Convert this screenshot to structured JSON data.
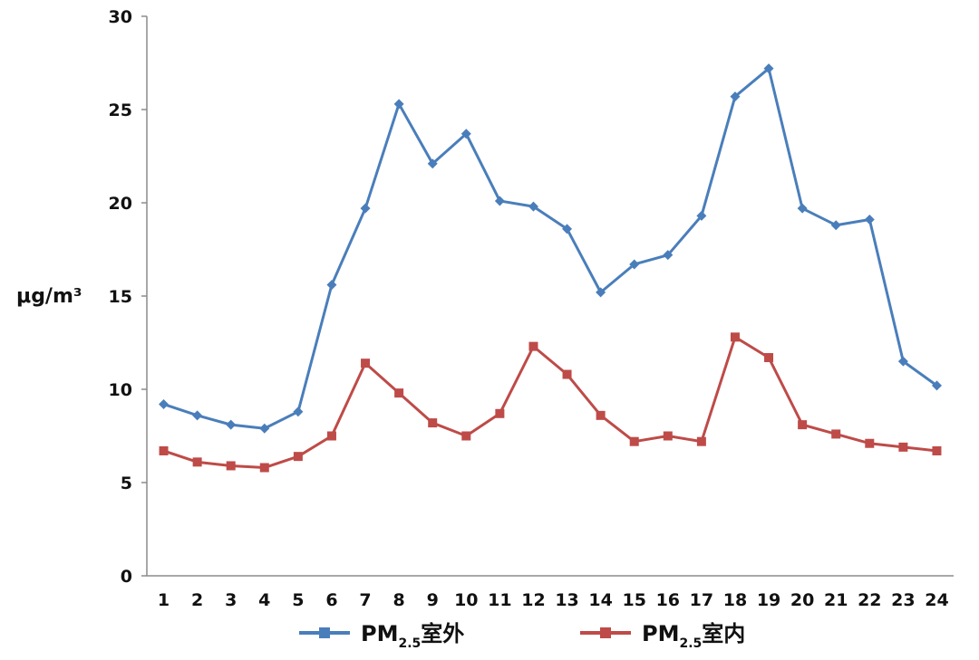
{
  "chart_data": {
    "type": "line",
    "title": "",
    "xlabel": "",
    "ylabel": "μg/m³",
    "ylim": [
      0,
      30
    ],
    "yticks": [
      0,
      5,
      10,
      15,
      20,
      25,
      30
    ],
    "grid": false,
    "legend_position": "bottom",
    "categories": [
      "1",
      "2",
      "3",
      "4",
      "5",
      "6",
      "7",
      "8",
      "9",
      "10",
      "11",
      "12",
      "13",
      "14",
      "15",
      "16",
      "17",
      "18",
      "19",
      "20",
      "21",
      "22",
      "23",
      "24"
    ],
    "series": [
      {
        "name": "PM2.5室外",
        "name_main": "PM",
        "name_sub": "2.5",
        "name_suffix": "室外",
        "color": "#4A7EBB",
        "marker": "diamond",
        "values": [
          9.2,
          8.6,
          8.1,
          7.9,
          8.8,
          15.6,
          19.7,
          25.3,
          22.1,
          23.7,
          20.1,
          19.8,
          18.6,
          15.2,
          16.7,
          17.2,
          19.3,
          25.7,
          27.2,
          19.7,
          18.8,
          19.1,
          11.5,
          10.2
        ]
      },
      {
        "name": "PM2.5室内",
        "name_main": "PM",
        "name_sub": "2.5",
        "name_suffix": "室内",
        "color": "#BE4B48",
        "marker": "square",
        "values": [
          6.7,
          6.1,
          5.9,
          5.8,
          6.4,
          7.5,
          11.4,
          9.8,
          8.2,
          7.5,
          8.7,
          12.3,
          10.8,
          8.6,
          7.2,
          7.5,
          7.2,
          12.8,
          11.7,
          8.1,
          7.6,
          7.1,
          6.9,
          6.7
        ]
      }
    ]
  }
}
